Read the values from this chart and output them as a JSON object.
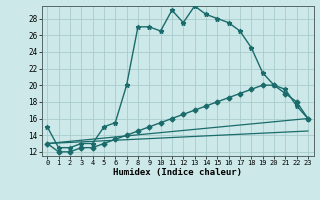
{
  "title": "",
  "xlabel": "Humidex (Indice chaleur)",
  "xlim": [
    -0.5,
    23.5
  ],
  "ylim": [
    11.5,
    29.5
  ],
  "xticks": [
    0,
    1,
    2,
    3,
    4,
    5,
    6,
    7,
    8,
    9,
    10,
    11,
    12,
    13,
    14,
    15,
    16,
    17,
    18,
    19,
    20,
    21,
    22,
    23
  ],
  "yticks": [
    12,
    14,
    16,
    18,
    20,
    22,
    24,
    26,
    28
  ],
  "bg_color": "#cde8e8",
  "grid_color": "#aacccc",
  "line_color": "#1a6b6b",
  "line1_x": [
    0,
    1,
    2,
    3,
    4,
    5,
    6,
    7,
    8,
    9,
    10,
    11,
    12,
    13,
    14,
    15,
    16,
    17,
    18,
    19,
    20,
    21,
    22,
    23
  ],
  "line1_y": [
    15,
    12.5,
    12.5,
    13,
    13,
    15,
    15.5,
    20,
    27,
    27,
    26.5,
    29,
    27.5,
    29.5,
    28.5,
    28,
    27.5,
    26.5,
    24.5,
    21.5,
    20,
    19.5,
    17.5,
    16
  ],
  "line2_x": [
    0,
    1,
    2,
    3,
    4,
    5,
    6,
    7,
    8,
    9,
    10,
    11,
    12,
    13,
    14,
    15,
    16,
    17,
    18,
    19,
    20,
    21,
    22,
    23
  ],
  "line2_y": [
    13,
    12,
    12,
    12.5,
    12.5,
    13,
    13.5,
    14,
    14.5,
    15,
    15.5,
    16,
    16.5,
    17,
    17.5,
    18,
    18.5,
    19,
    19.5,
    20,
    20,
    19,
    18,
    16
  ],
  "line3_x": [
    0,
    23
  ],
  "line3_y": [
    13,
    16
  ],
  "line4_x": [
    0,
    23
  ],
  "line4_y": [
    13,
    14.5
  ]
}
